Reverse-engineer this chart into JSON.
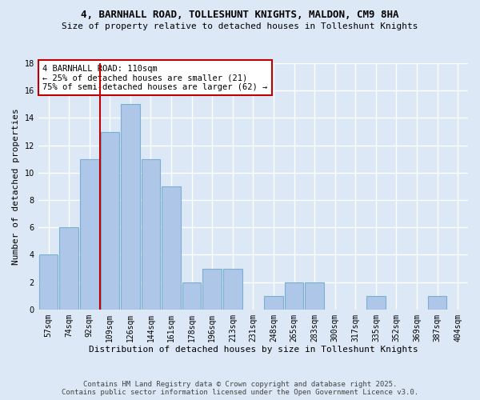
{
  "title": "4, BARNHALL ROAD, TOLLESHUNT KNIGHTS, MALDON, CM9 8HA",
  "subtitle": "Size of property relative to detached houses in Tolleshunt Knights",
  "xlabel": "Distribution of detached houses by size in Tolleshunt Knights",
  "ylabel": "Number of detached properties",
  "categories": [
    "57sqm",
    "74sqm",
    "92sqm",
    "109sqm",
    "126sqm",
    "144sqm",
    "161sqm",
    "178sqm",
    "196sqm",
    "213sqm",
    "231sqm",
    "248sqm",
    "265sqm",
    "283sqm",
    "300sqm",
    "317sqm",
    "335sqm",
    "352sqm",
    "369sqm",
    "387sqm",
    "404sqm"
  ],
  "values": [
    4,
    6,
    11,
    13,
    15,
    11,
    9,
    2,
    3,
    3,
    0,
    1,
    2,
    2,
    0,
    0,
    1,
    0,
    0,
    1,
    0
  ],
  "bar_color": "#aec6e8",
  "bar_edge_color": "#7aafd4",
  "highlight_index": 3,
  "highlight_color": "#c00000",
  "ylim": [
    0,
    18
  ],
  "yticks": [
    0,
    2,
    4,
    6,
    8,
    10,
    12,
    14,
    16,
    18
  ],
  "annotation_line1": "4 BARNHALL ROAD: 110sqm",
  "annotation_line2": "← 25% of detached houses are smaller (21)",
  "annotation_line3": "75% of semi-detached houses are larger (62) →",
  "annotation_box_color": "#ffffff",
  "annotation_box_edge": "#c00000",
  "footer_line1": "Contains HM Land Registry data © Crown copyright and database right 2025.",
  "footer_line2": "Contains public sector information licensed under the Open Government Licence v3.0.",
  "bg_color": "#dce8f5",
  "grid_color": "#ffffff",
  "title_fontsize": 9,
  "subtitle_fontsize": 8,
  "axis_label_fontsize": 8,
  "tick_fontsize": 7,
  "annotation_fontsize": 7.5,
  "footer_fontsize": 6.5
}
